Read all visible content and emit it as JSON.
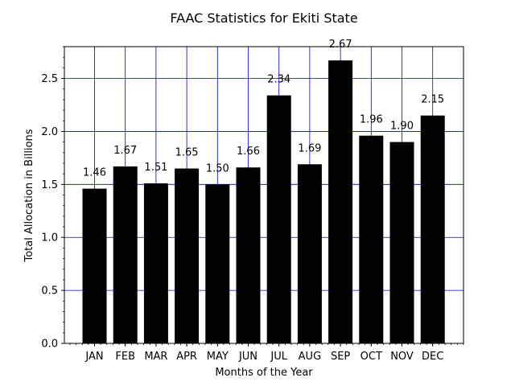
{
  "chart_data": {
    "type": "bar",
    "title": "FAAC Statistics for Ekiti State",
    "xlabel": "Months of the Year",
    "ylabel": "Total Allocation in Billions",
    "categories": [
      "JAN",
      "FEB",
      "MAR",
      "APR",
      "MAY",
      "JUN",
      "JUL",
      "AUG",
      "SEP",
      "OCT",
      "NOV",
      "DEC"
    ],
    "values": [
      1.46,
      1.67,
      1.51,
      1.65,
      1.5,
      1.66,
      2.34,
      1.69,
      2.67,
      1.96,
      1.9,
      2.15
    ],
    "data_labels": [
      "1.46",
      "1.67",
      "1.51",
      "1.65",
      "1.50",
      "1.66",
      "2.34",
      "1.69",
      "2.67",
      "1.96",
      "1.90",
      "2.15"
    ],
    "ylim": [
      0,
      2.8
    ],
    "yticks": [
      0.0,
      0.5,
      1.0,
      1.5,
      2.0,
      2.5
    ],
    "ytick_labels": [
      "0.0",
      "0.5",
      "1.0",
      "1.5",
      "2.0",
      "2.5"
    ],
    "grid": true,
    "colors": {
      "bar": "#000000",
      "grid": "#0000cc",
      "axes": "#000000"
    }
  }
}
